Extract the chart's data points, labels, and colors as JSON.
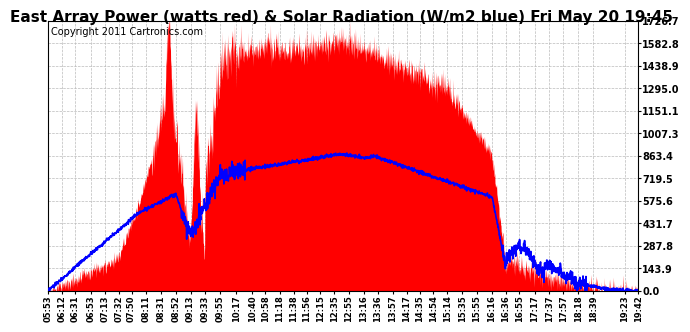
{
  "title": "East Array Power (watts red) & Solar Radiation (W/m2 blue) Fri May 20 19:45",
  "copyright": "Copyright 2011 Cartronics.com",
  "yticks": [
    0.0,
    143.9,
    287.8,
    431.7,
    575.6,
    719.5,
    863.4,
    1007.3,
    1151.1,
    1295.0,
    1438.9,
    1582.8,
    1726.7
  ],
  "ymax": 1726.7,
  "ymin": 0.0,
  "xtick_labels": [
    "05:53",
    "06:12",
    "06:31",
    "06:53",
    "07:13",
    "07:32",
    "07:50",
    "08:11",
    "08:31",
    "08:52",
    "09:13",
    "09:33",
    "09:55",
    "10:17",
    "10:40",
    "10:58",
    "11:18",
    "11:38",
    "11:56",
    "12:15",
    "12:35",
    "12:55",
    "13:16",
    "13:36",
    "13:57",
    "14:17",
    "14:35",
    "14:54",
    "15:14",
    "15:35",
    "15:55",
    "16:16",
    "16:36",
    "16:55",
    "17:17",
    "17:37",
    "17:57",
    "18:18",
    "18:39",
    "19:23",
    "19:42"
  ],
  "background_color": "#ffffff",
  "grid_color": "#bbbbbb",
  "power_color": "#ff0000",
  "radiation_color": "#0000ff",
  "title_fontsize": 11,
  "copyright_fontsize": 7
}
